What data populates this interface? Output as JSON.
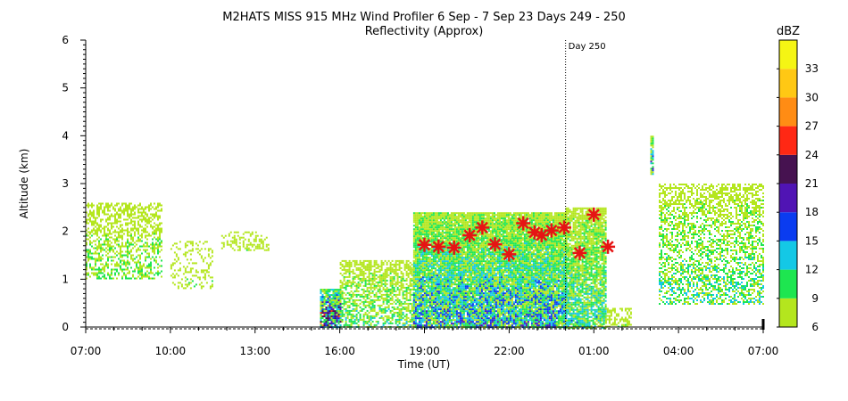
{
  "chart_data": {
    "type": "heatmap",
    "title": "M2HATS MISS 915 MHz Wind Profiler   6 Sep -  7 Sep 23 Days 249 - 250",
    "subtitle": "Reflectivity (Approx)",
    "xlabel": "Time (UT)",
    "ylabel": "Altitude (km)",
    "x_ticks": [
      "07:00",
      "10:00",
      "13:00",
      "16:00",
      "19:00",
      "22:00",
      "01:00",
      "04:00",
      "07:00"
    ],
    "x_range_hours": [
      7,
      31
    ],
    "y_ticks": [
      "0",
      "1",
      "2",
      "3",
      "4",
      "5",
      "6"
    ],
    "ylim": [
      0,
      6
    ],
    "marker_line": {
      "x_hour": 24,
      "label": "Day 250"
    },
    "colorbar": {
      "label": "dBZ",
      "ticks": [
        "33",
        "30",
        "27",
        "24",
        "21",
        "18",
        "15",
        "12",
        "9",
        "6"
      ],
      "levels": [
        {
          "min": 6,
          "max": 9,
          "color": "#b4e61e"
        },
        {
          "min": 9,
          "max": 12,
          "color": "#1ee650"
        },
        {
          "min": 12,
          "max": 15,
          "color": "#14c8e6"
        },
        {
          "min": 15,
          "max": 18,
          "color": "#0a3cf0"
        },
        {
          "min": 18,
          "max": 21,
          "color": "#5014b4"
        },
        {
          "min": 21,
          "max": 24,
          "color": "#461250"
        },
        {
          "min": 24,
          "max": 27,
          "color": "#ff2814"
        },
        {
          "min": 27,
          "max": 30,
          "color": "#ff8c14"
        },
        {
          "min": 30,
          "max": 33,
          "color": "#ffc814"
        },
        {
          "min": 33,
          "max": 36,
          "color": "#f5f514"
        }
      ]
    },
    "echo_regions": [
      {
        "t0": 7.0,
        "t1": 9.7,
        "h0": 1.0,
        "h1": 2.6,
        "density": 0.5,
        "dbz": [
          6,
          12
        ]
      },
      {
        "t0": 10.0,
        "t1": 11.5,
        "h0": 0.8,
        "h1": 1.8,
        "density": 0.25,
        "dbz": [
          6,
          10
        ]
      },
      {
        "t0": 11.8,
        "t1": 13.5,
        "h0": 1.6,
        "h1": 2.0,
        "density": 0.35,
        "dbz": [
          6,
          10
        ]
      },
      {
        "t0": 15.3,
        "t1": 16.0,
        "h0": 0.0,
        "h1": 0.8,
        "density": 0.9,
        "dbz": [
          6,
          33
        ]
      },
      {
        "t0": 16.0,
        "t1": 18.6,
        "h0": 0.0,
        "h1": 1.4,
        "density": 0.6,
        "dbz": [
          6,
          14
        ]
      },
      {
        "t0": 18.6,
        "t1": 24.0,
        "h0": 0.0,
        "h1": 2.4,
        "density": 0.95,
        "dbz": [
          6,
          20
        ]
      },
      {
        "t0": 24.0,
        "t1": 25.4,
        "h0": 0.0,
        "h1": 2.5,
        "density": 0.85,
        "dbz": [
          6,
          16
        ]
      },
      {
        "t0": 25.4,
        "t1": 26.3,
        "h0": 0.0,
        "h1": 0.4,
        "density": 0.5,
        "dbz": [
          6,
          10
        ]
      },
      {
        "t0": 27.0,
        "t1": 27.1,
        "h0": 3.2,
        "h1": 4.0,
        "density": 0.9,
        "dbz": [
          6,
          24
        ]
      },
      {
        "t0": 27.3,
        "t1": 31.0,
        "h0": 0.5,
        "h1": 3.0,
        "density": 0.5,
        "dbz": [
          6,
          15
        ]
      }
    ],
    "markers": [
      {
        "x_hour": 19.0,
        "y_km": 1.72
      },
      {
        "x_hour": 19.5,
        "y_km": 1.68
      },
      {
        "x_hour": 20.05,
        "y_km": 1.66
      },
      {
        "x_hour": 20.6,
        "y_km": 1.92
      },
      {
        "x_hour": 21.05,
        "y_km": 2.08
      },
      {
        "x_hour": 21.5,
        "y_km": 1.73
      },
      {
        "x_hour": 22.0,
        "y_km": 1.52
      },
      {
        "x_hour": 22.5,
        "y_km": 2.17
      },
      {
        "x_hour": 22.9,
        "y_km": 1.98
      },
      {
        "x_hour": 23.15,
        "y_km": 1.92
      },
      {
        "x_hour": 23.5,
        "y_km": 2.02
      },
      {
        "x_hour": 23.95,
        "y_km": 2.08
      },
      {
        "x_hour": 24.5,
        "y_km": 1.55
      },
      {
        "x_hour": 25.0,
        "y_km": 2.35
      },
      {
        "x_hour": 25.5,
        "y_km": 1.68
      }
    ],
    "marker_color": "#e61414",
    "grid": false,
    "legend": "colorbar-right"
  }
}
